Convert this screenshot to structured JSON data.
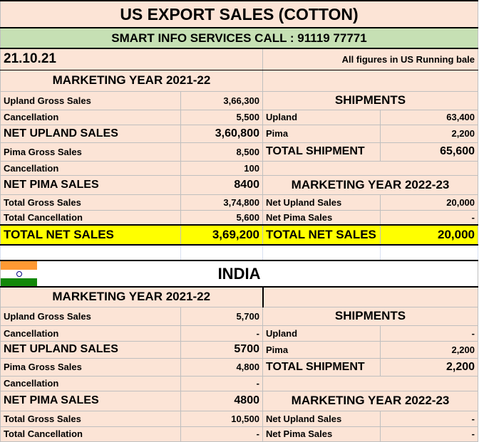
{
  "title": "US EXPORT SALES (COTTON)",
  "subtitle": "SMART INFO SERVICES CALL : 91119 77771",
  "date": "21.10.21",
  "units_note": "All figures in US Running bale",
  "colors": {
    "background": "#fce4d6",
    "subtitle_bg": "#c6e0b4",
    "highlight": "#ffff00"
  },
  "us": {
    "marketing_year": "MARKETING YEAR 2021-22",
    "rows": [
      [
        "Upland Gross Sales",
        "3,66,300",
        "SHIPMENTS"
      ],
      [
        "Cancellation",
        "5,500",
        "Upland",
        "63,400"
      ],
      [
        "NET UPLAND SALES",
        "3,60,800",
        "Pima",
        "2,200"
      ],
      [
        "Pima Gross Sales",
        "8,500",
        "TOTAL SHIPMENT",
        "65,600"
      ],
      [
        "Cancellation",
        "100",
        ""
      ],
      [
        "NET PIMA SALES",
        "8400",
        "MARKETING YEAR 2022-23"
      ],
      [
        "Total Gross Sales",
        "3,74,800",
        "Net Upland Sales",
        "20,000"
      ],
      [
        "Total Cancellation",
        "5,600",
        "Net Pima Sales",
        "-"
      ],
      [
        "TOTAL NET SALES",
        "3,69,200",
        "TOTAL NET SALES",
        "20,000"
      ]
    ]
  },
  "india": {
    "country": "INDIA",
    "flag_icon": "india-flag",
    "marketing_year": "MARKETING YEAR 2021-22",
    "rows": [
      [
        "Upland Gross Sales",
        "5,700",
        "SHIPMENTS"
      ],
      [
        "Cancellation",
        "-",
        "Upland",
        "-"
      ],
      [
        "NET UPLAND SALES",
        "5700",
        "Pima",
        "2,200"
      ],
      [
        "Pima Gross Sales",
        "4,800",
        "TOTAL SHIPMENT",
        "2,200"
      ],
      [
        "Cancellation",
        "-",
        ""
      ],
      [
        "NET PIMA SALES",
        "4800",
        "MARKETING YEAR 2022-23"
      ],
      [
        "Total Gross Sales",
        "10,500",
        "Net Upland Sales",
        "-"
      ],
      [
        "Total Cancellation",
        "-",
        "Net Pima Sales",
        "-"
      ]
    ]
  }
}
